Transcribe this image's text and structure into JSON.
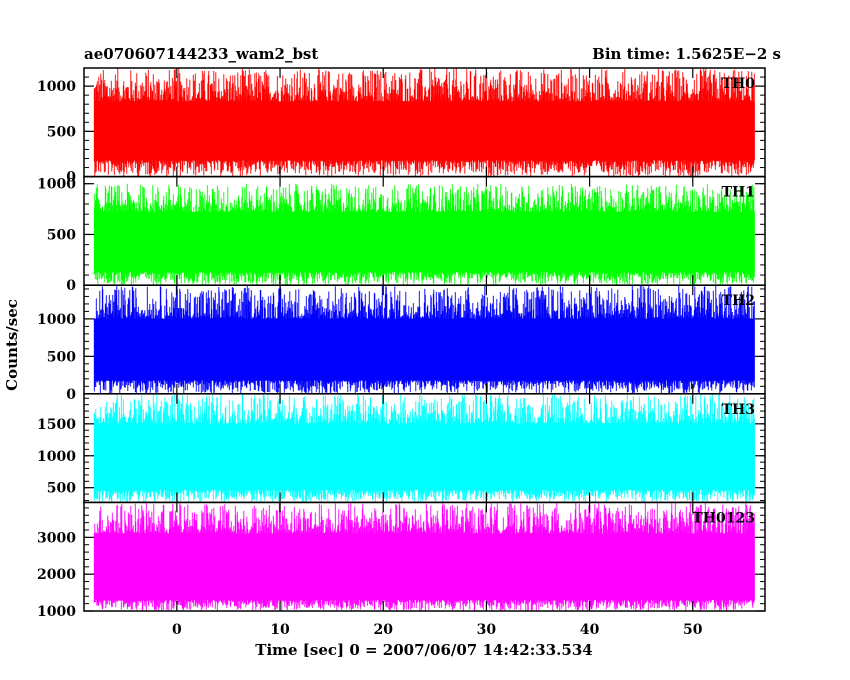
{
  "chart_data": {
    "type": "line",
    "title": "ae070607144233_wam2_bst",
    "subtitle": "Bin time: 1.5625E−2 s",
    "xlabel": "Time [sec] 0 = 2007/06/07 14:42:33.534",
    "ylabel": "Counts/sec",
    "xlim": [
      -9,
      57
    ],
    "x_ticks": [
      0,
      10,
      20,
      30,
      40,
      50
    ],
    "x_tick_labels": [
      "0",
      "10",
      "20",
      "30",
      "40",
      "50"
    ],
    "x_data_range": [
      -8,
      56
    ],
    "bin_time_s": 0.015625,
    "grid": false,
    "panels": [
      {
        "name": "TH0",
        "color": "#ff0000",
        "ylim": [
          0,
          1200
        ],
        "yticks": [
          0,
          500,
          1000
        ],
        "ytick_labels": [
          "0",
          "500",
          "1000"
        ],
        "band_low": 180,
        "band_high": 830,
        "spike_low": 0,
        "spike_high": 1200
      },
      {
        "name": "TH1",
        "color": "#00ff00",
        "ylim": [
          0,
          1070
        ],
        "yticks": [
          0,
          500,
          1000
        ],
        "ytick_labels": [
          "0",
          "500",
          "1000"
        ],
        "band_low": 130,
        "band_high": 720,
        "spike_low": 0,
        "spike_high": 1000
      },
      {
        "name": "TH2",
        "color": "#0000ff",
        "ylim": [
          0,
          1450
        ],
        "yticks": [
          0,
          500,
          1000
        ],
        "ytick_labels": [
          "0",
          "500",
          "1000"
        ],
        "band_low": 180,
        "band_high": 1000,
        "spike_low": 0,
        "spike_high": 1450
      },
      {
        "name": "TH3",
        "color": "#00ffff",
        "ylim": [
          270,
          1970
        ],
        "yticks": [
          500,
          1000,
          1500
        ],
        "ytick_labels": [
          "500",
          "1000",
          "1500"
        ],
        "band_low": 470,
        "band_high": 1500,
        "spike_low": 270,
        "spike_high": 1970
      },
      {
        "name": "TH0123",
        "color": "#ff00ff",
        "ylim": [
          1000,
          3950
        ],
        "yticks": [
          1000,
          2000,
          3000
        ],
        "ytick_labels": [
          "1000",
          "2000",
          "3000"
        ],
        "band_low": 1300,
        "band_high": 3100,
        "spike_low": 1000,
        "spike_high": 3950
      }
    ]
  }
}
